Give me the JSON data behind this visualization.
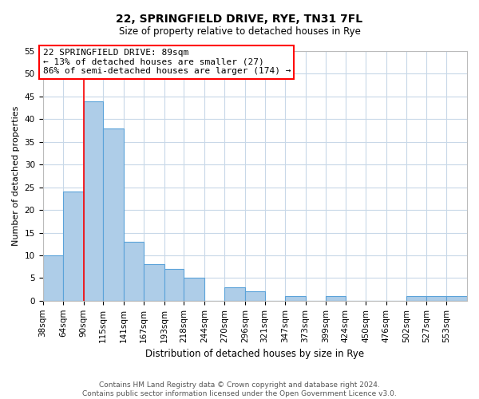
{
  "title": "22, SPRINGFIELD DRIVE, RYE, TN31 7FL",
  "subtitle": "Size of property relative to detached houses in Rye",
  "xlabel": "Distribution of detached houses by size in Rye",
  "ylabel": "Number of detached properties",
  "footer_line1": "Contains HM Land Registry data © Crown copyright and database right 2024.",
  "footer_line2": "Contains public sector information licensed under the Open Government Licence v3.0.",
  "bin_labels": [
    "38sqm",
    "64sqm",
    "90sqm",
    "115sqm",
    "141sqm",
    "167sqm",
    "193sqm",
    "218sqm",
    "244sqm",
    "270sqm",
    "296sqm",
    "321sqm",
    "347sqm",
    "373sqm",
    "399sqm",
    "424sqm",
    "450sqm",
    "476sqm",
    "502sqm",
    "527sqm",
    "553sqm"
  ],
  "bar_heights": [
    10,
    24,
    44,
    38,
    13,
    8,
    7,
    5,
    0,
    3,
    2,
    0,
    1,
    0,
    1,
    0,
    0,
    0,
    1,
    1,
    1
  ],
  "bar_color": "#aecde8",
  "bar_edge_color": "#5ba3d9",
  "bin_edges": [
    38,
    64,
    90,
    115,
    141,
    167,
    193,
    218,
    244,
    270,
    296,
    321,
    347,
    373,
    399,
    424,
    450,
    476,
    502,
    527,
    553,
    579
  ],
  "ylim": [
    0,
    55
  ],
  "yticks": [
    0,
    5,
    10,
    15,
    20,
    25,
    30,
    35,
    40,
    45,
    50,
    55
  ],
  "red_line_x": 90,
  "annotation_box_text": "22 SPRINGFIELD DRIVE: 89sqm\n← 13% of detached houses are smaller (27)\n86% of semi-detached houses are larger (174) →",
  "background_color": "#ffffff",
  "grid_color": "#c8d8e8",
  "title_fontsize": 10,
  "subtitle_fontsize": 8.5,
  "ylabel_fontsize": 8,
  "xlabel_fontsize": 8.5,
  "tick_fontsize": 7.5,
  "footer_fontsize": 6.5,
  "annot_fontsize": 8
}
